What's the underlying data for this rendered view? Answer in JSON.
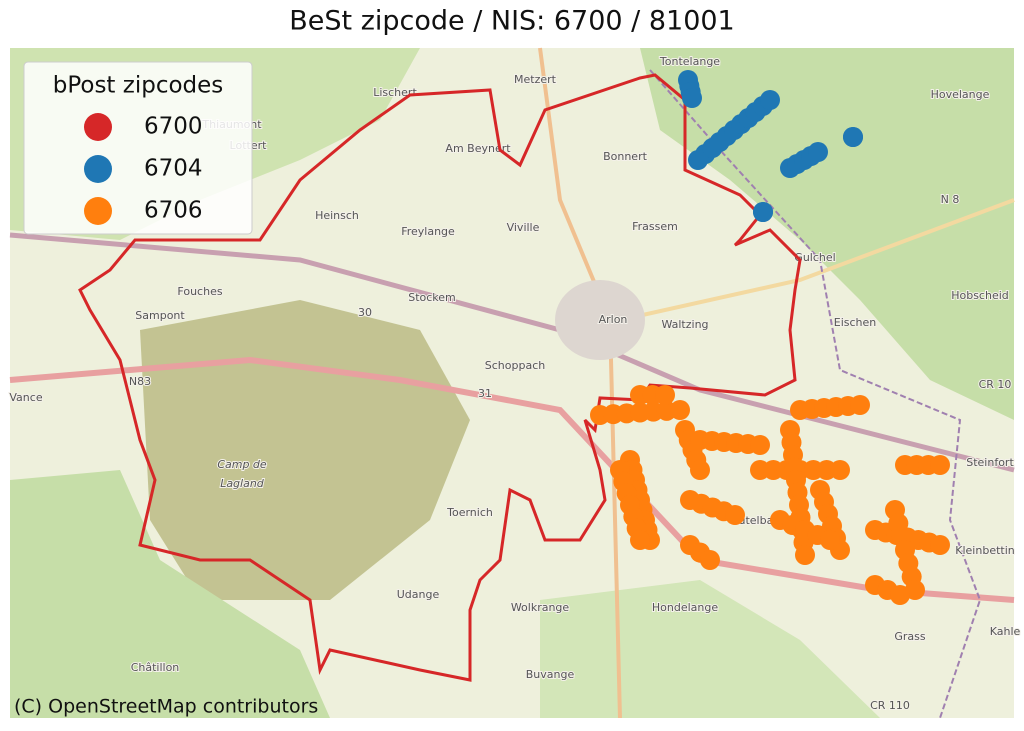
{
  "title": "BeSt zipcode / NIS: 6700 / 81001",
  "legend": {
    "title": "bPost zipcodes",
    "items": [
      {
        "label": "6700",
        "color": "#d62728"
      },
      {
        "label": "6704",
        "color": "#1f77b4"
      },
      {
        "label": "6706",
        "color": "#ff7f0e"
      }
    ]
  },
  "map": {
    "labels": [
      "Tontelange",
      "Hovelange",
      "Metzert",
      "Lischert",
      "Thiaumont",
      "Lottert",
      "Am Beynert",
      "Bonnert",
      "Heinsch",
      "Freylange",
      "Viville",
      "Frassem",
      "N 8",
      "Gulchel",
      "Fouches",
      "Stockem",
      "Arlon",
      "Waltzing",
      "Sampont",
      "Eischen",
      "Hobscheid",
      "N83",
      "Schoppach",
      "Vance",
      "CR 10",
      "Camp de",
      "Lagland",
      "Steinfort",
      "Toernich",
      "Autelbas",
      "Kleinbettin",
      "Udange",
      "Wolkrange",
      "Hondelange",
      "Grass",
      "Kahle",
      "Châtillon",
      "Buvange",
      "CR 110",
      "30",
      "31"
    ],
    "attribution": "(C) OpenStreetMap contributors"
  }
}
